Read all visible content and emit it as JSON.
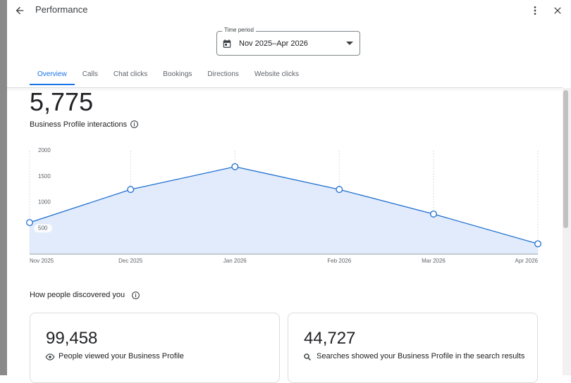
{
  "header": {
    "title": "Performance"
  },
  "time_period": {
    "label": "Time period",
    "value": "Nov 2025–Apr 2026"
  },
  "tabs": [
    "Overview",
    "Calls",
    "Chat clicks",
    "Bookings",
    "Directions",
    "Website clicks"
  ],
  "summary": {
    "value": "5,775",
    "label": "Business Profile interactions"
  },
  "chart_data": {
    "type": "line",
    "x": [
      "Nov 2025",
      "Dec 2025",
      "Jan 2026",
      "Feb 2026",
      "Mar 2026",
      "Apr 2026"
    ],
    "values": [
      610,
      1250,
      1690,
      1250,
      775,
      200
    ],
    "color": "#1f6fcf",
    "fill": "#e1ebfb",
    "ylim": [
      0,
      2000
    ],
    "yticks": [
      500,
      1000,
      1500,
      2000
    ],
    "grid": "x"
  },
  "discovery": {
    "title": "How people discovered you",
    "cards": [
      {
        "value": "99,458",
        "label": "People viewed your Business Profile"
      },
      {
        "value": "44,727",
        "label": "Searches showed your Business Profile in the search results"
      }
    ]
  }
}
